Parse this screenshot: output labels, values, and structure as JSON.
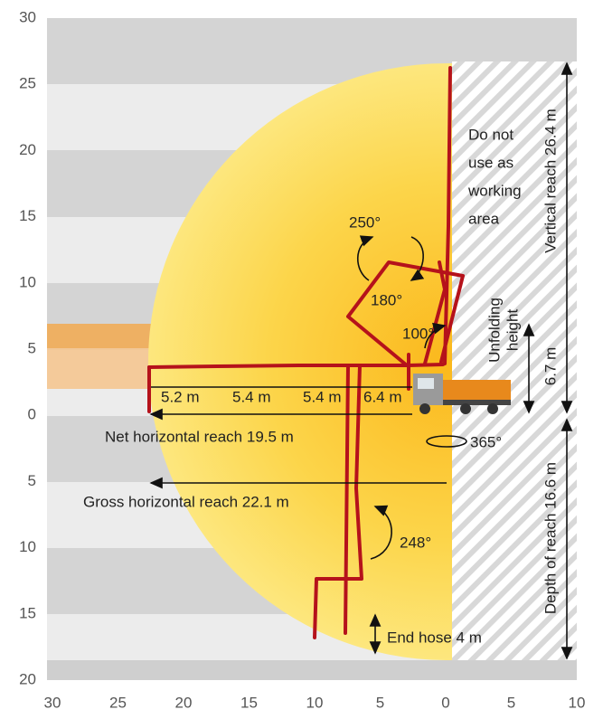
{
  "y_axis_labels": [
    "30",
    "25",
    "20",
    "15",
    "10",
    "5",
    "0",
    "5",
    "10",
    "15",
    "20"
  ],
  "x_axis_labels": [
    "30",
    "25",
    "20",
    "15",
    "10",
    "5",
    "0",
    "5",
    "10"
  ],
  "no_work_area": [
    "Do not",
    "use as",
    "working",
    "area"
  ],
  "vertical_reach": "Vertical reach 26.4 m",
  "unfolding_height": [
    "Unfolding",
    "height",
    "6.7 m"
  ],
  "depth_of_reach": "Depth of reach 16.6 m",
  "angles": [
    "250°",
    "180°",
    "100°",
    "365°",
    "248°"
  ],
  "sections": [
    "5.2 m",
    "5.4 m",
    "5.4 m",
    "6.4 m"
  ],
  "net_horizontal_reach": "Net horizontal reach 19.5 m",
  "gross_horizontal_reach": "Gross horizontal reach 22.1 m",
  "end_hose": "End hose 4 m"
}
